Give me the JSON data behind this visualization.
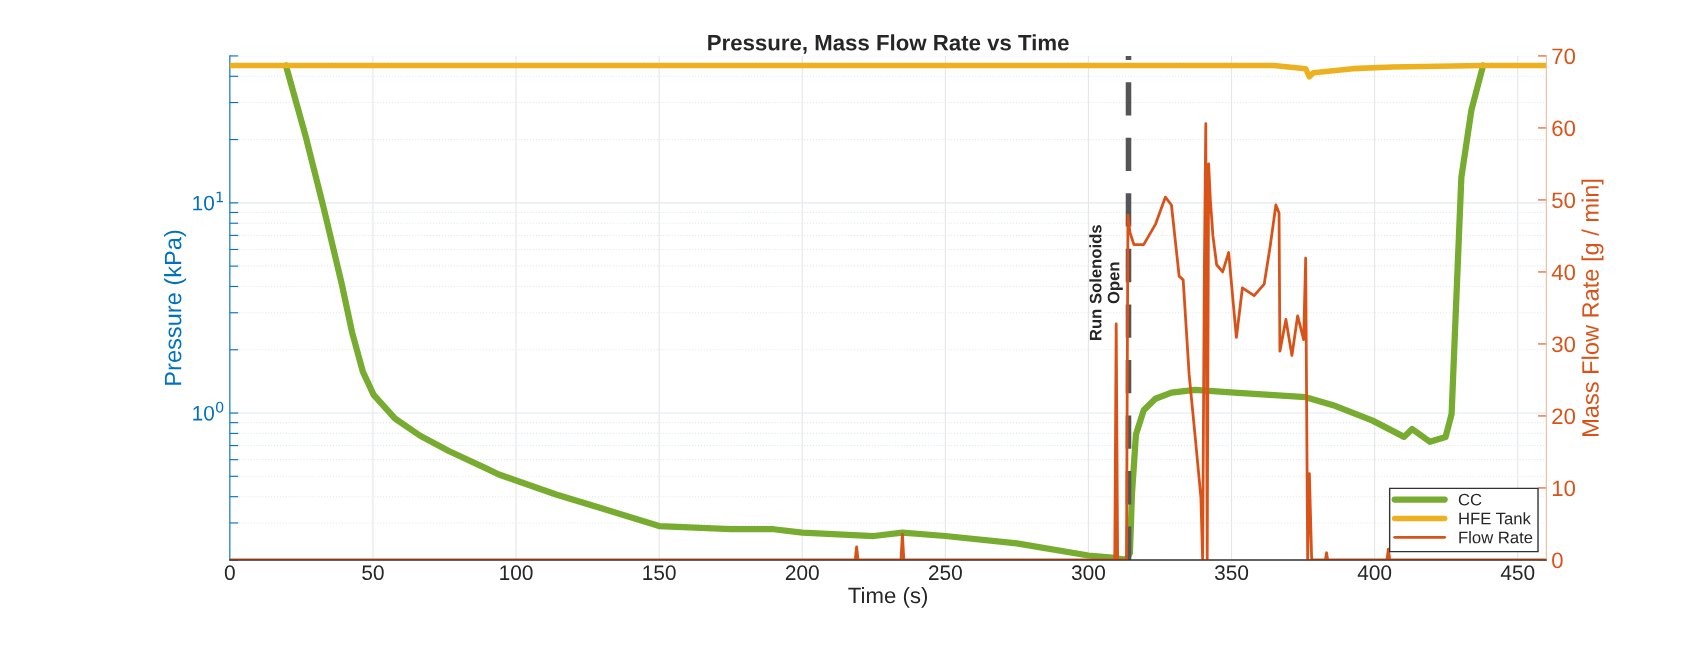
{
  "chart_data": {
    "type": "line",
    "title": "Pressure, Mass Flow Rate vs Time",
    "xlabel": "Time (s)",
    "ylabel": "Pressure (kPa)",
    "y2label": "Mass Flow Rate [g / min]",
    "xlim": [
      0,
      460
    ],
    "xticks": [
      0,
      50,
      100,
      150,
      200,
      250,
      300,
      350,
      400,
      450
    ],
    "ylim": [
      0.2,
      50
    ],
    "log": "y",
    "yticks": [
      {
        "value": 0.2,
        "label": null
      },
      {
        "value": 0.3,
        "label": null
      },
      {
        "value": 0.4,
        "label": null
      },
      {
        "value": 0.5,
        "label": null
      },
      {
        "value": 0.6,
        "label": null
      },
      {
        "value": 0.7,
        "label": null
      },
      {
        "value": 0.8,
        "label": null
      },
      {
        "value": 0.9,
        "label": null
      },
      {
        "value": 1,
        "label": "10$^{0}$"
      },
      {
        "value": 2,
        "label": null
      },
      {
        "value": 3,
        "label": null
      },
      {
        "value": 4,
        "label": null
      },
      {
        "value": 5,
        "label": null
      },
      {
        "value": 6,
        "label": null
      },
      {
        "value": 7,
        "label": null
      },
      {
        "value": 8,
        "label": null
      },
      {
        "value": 9,
        "label": null
      },
      {
        "value": 10,
        "label": "10$^{1}$"
      },
      {
        "value": 20,
        "label": null
      },
      {
        "value": 30,
        "label": null
      },
      {
        "value": 40,
        "label": null
      },
      {
        "value": 50,
        "label": null
      }
    ],
    "y2lim": [
      0,
      70
    ],
    "y2ticks": [
      0,
      10,
      20,
      30,
      40,
      50,
      60,
      70
    ],
    "grid": true,
    "legend": "bottom right",
    "ref_lines": [
      {
        "axis": "x",
        "value": 314,
        "label": "Run Solenoids\nOpen",
        "color": "#555555",
        "line_style": "dashed"
      }
    ],
    "series": [
      {
        "name": "CC",
        "color": "#77ac30",
        "x": [
          19.6,
          26.5,
          32.75,
          39,
          42.75,
          46.5,
          50.25,
          57.75,
          66.5,
          76.5,
          89,
          94,
          101.5,
          114,
          129,
          150,
          175,
          190,
          200,
          225,
          235,
          250,
          275,
          300,
          308.3,
          313.1,
          314.5,
          315.2,
          316.6,
          319.3,
          323.4,
          329,
          337.2,
          351,
          363.4,
          375.9,
          385.5,
          399.3,
          410.3,
          413.1,
          419.3,
          424.8,
          426.9,
          428.3,
          430.3,
          433.8,
          437.9
        ],
        "values": [
          45,
          20.7,
          9.5,
          4.17,
          2.41,
          1.57,
          1.22,
          0.94,
          0.78,
          0.66,
          0.55,
          0.51,
          0.47,
          0.41,
          0.355,
          0.29,
          0.28,
          0.28,
          0.27,
          0.26,
          0.27,
          0.26,
          0.24,
          0.21,
          0.205,
          0.2,
          0.216,
          0.41,
          0.79,
          1.03,
          1.17,
          1.25,
          1.29,
          1.25,
          1.22,
          1.19,
          1.09,
          0.92,
          0.77,
          0.84,
          0.73,
          0.77,
          0.99,
          2.9,
          13.2,
          27.6,
          45
        ]
      },
      {
        "name": "HFE Tank",
        "color": "#edb120",
        "x": [
          0,
          364.8,
          375.9,
          377.2,
          378.6,
          392.4,
          406.2,
          437.9,
          460
        ],
        "values": [
          45,
          45,
          43.5,
          39.8,
          41.6,
          43.5,
          44.3,
          45,
          45
        ]
      },
      {
        "name": "Flow Rate",
        "color": "#d95319",
        "axis": "y2",
        "x": [
          0,
          218.5,
          219,
          219.5,
          234.5,
          235,
          235.5,
          309.2,
          309.7,
          310.2,
          313.3,
          313.8,
          314.5,
          315.9,
          319.3,
          323.4,
          326.9,
          329,
          331.7,
          333.1,
          335.2,
          337.2,
          339.3,
          339.9,
          340.5,
          341,
          341.5,
          342,
          342.6,
          343.5,
          344.8,
          346.9,
          349,
          351,
          351.7,
          353.8,
          357.9,
          361.4,
          363.4,
          365.5,
          366.6,
          366.9,
          369,
          371.1,
          373.1,
          375.2,
          375.9,
          376.6,
          377.2,
          378,
          382.8,
          383.2,
          383.6,
          404.3,
          404.8,
          405.3,
          460
        ],
        "values": [
          0,
          0,
          1.8,
          0,
          0,
          3.6,
          0,
          0,
          32.8,
          0,
          0,
          47.9,
          45.5,
          43.8,
          43.8,
          46.6,
          50.4,
          49.3,
          39.4,
          38.9,
          25.7,
          17.5,
          8.7,
          0,
          40,
          60.6,
          0,
          55,
          50,
          45,
          41,
          40,
          42.7,
          33.9,
          30.9,
          37.8,
          36.7,
          38.3,
          43.3,
          49.3,
          48.2,
          29,
          33.4,
          28.4,
          33.9,
          30.6,
          41.9,
          0,
          12,
          0,
          0,
          1,
          0,
          0,
          1.5,
          0,
          0
        ]
      }
    ]
  }
}
